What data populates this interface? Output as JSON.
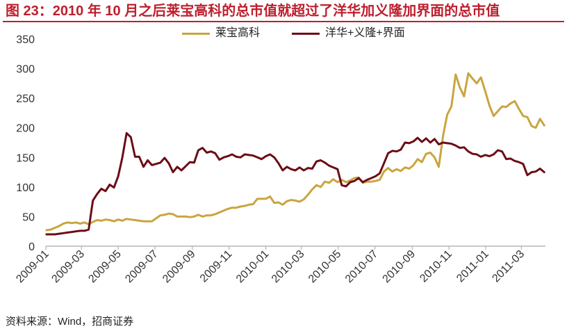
{
  "colors": {
    "title": "#BE1E2D",
    "axis": "#A6A6A6",
    "text": "#333333"
  },
  "chart_data": {
    "type": "line",
    "title": "图 23：2010 年 10 月之后莱宝高科的总市值就超过了洋华加义隆加界面的总市值",
    "legend": "top",
    "grid": false,
    "ylim": [
      0,
      350
    ],
    "yticks": [
      0,
      50,
      100,
      150,
      200,
      250,
      300,
      350
    ],
    "xlim": [
      "2009-01-01",
      "2011-04-10"
    ],
    "xticks": [
      "2009-01",
      "2009-03",
      "2009-05",
      "2009-07",
      "2009-09",
      "2009-11",
      "2010-01",
      "2010-03",
      "2010-05",
      "2010-07",
      "2010-09",
      "2010-11",
      "2011-01",
      "2011-03"
    ],
    "x": [
      "2009-01-02",
      "2009-01-09",
      "2009-01-16",
      "2009-01-23",
      "2009-01-30",
      "2009-02-06",
      "2009-02-13",
      "2009-02-20",
      "2009-02-27",
      "2009-03-06",
      "2009-03-13",
      "2009-03-20",
      "2009-03-27",
      "2009-04-03",
      "2009-04-10",
      "2009-04-17",
      "2009-04-24",
      "2009-05-01",
      "2009-05-08",
      "2009-05-15",
      "2009-05-22",
      "2009-05-29",
      "2009-06-05",
      "2009-06-12",
      "2009-06-19",
      "2009-06-26",
      "2009-07-03",
      "2009-07-10",
      "2009-07-17",
      "2009-07-24",
      "2009-07-31",
      "2009-08-07",
      "2009-08-14",
      "2009-08-21",
      "2009-08-28",
      "2009-09-04",
      "2009-09-11",
      "2009-09-18",
      "2009-09-25",
      "2009-10-02",
      "2009-10-09",
      "2009-10-16",
      "2009-10-23",
      "2009-10-30",
      "2009-11-06",
      "2009-11-13",
      "2009-11-20",
      "2009-11-27",
      "2009-12-04",
      "2009-12-11",
      "2009-12-18",
      "2009-12-25",
      "2010-01-01",
      "2010-01-08",
      "2010-01-15",
      "2010-01-22",
      "2010-01-29",
      "2010-02-05",
      "2010-02-12",
      "2010-02-19",
      "2010-02-26",
      "2010-03-05",
      "2010-03-12",
      "2010-03-19",
      "2010-03-26",
      "2010-04-02",
      "2010-04-09",
      "2010-04-16",
      "2010-04-23",
      "2010-04-30",
      "2010-05-07",
      "2010-05-14",
      "2010-05-21",
      "2010-05-28",
      "2010-06-04",
      "2010-06-11",
      "2010-06-18",
      "2010-06-25",
      "2010-07-02",
      "2010-07-09",
      "2010-07-16",
      "2010-07-23",
      "2010-07-30",
      "2010-08-06",
      "2010-08-13",
      "2010-08-20",
      "2010-08-27",
      "2010-09-03",
      "2010-09-10",
      "2010-09-17",
      "2010-09-24",
      "2010-10-01",
      "2010-10-08",
      "2010-10-15",
      "2010-10-22",
      "2010-10-29",
      "2010-11-05",
      "2010-11-12",
      "2010-11-19",
      "2010-11-26",
      "2010-12-03",
      "2010-12-10",
      "2010-12-17",
      "2010-12-24",
      "2010-12-31",
      "2011-01-07",
      "2011-01-14",
      "2011-01-21",
      "2011-01-28",
      "2011-02-04",
      "2011-02-11",
      "2011-02-18",
      "2011-02-25",
      "2011-03-04",
      "2011-03-11",
      "2011-03-18",
      "2011-03-25",
      "2011-04-01",
      "2011-04-08"
    ],
    "series": [
      {
        "name": "莱宝高科",
        "color": "#C9A53F",
        "values": [
          27,
          28,
          31,
          34,
          38,
          40,
          39,
          40,
          38,
          40,
          37,
          41,
          44,
          43,
          45,
          44,
          42,
          45,
          43,
          46,
          45,
          44,
          43,
          42,
          42,
          42,
          47,
          52,
          53,
          55,
          54,
          50,
          50,
          50,
          49,
          50,
          53,
          50,
          52,
          52,
          54,
          57,
          60,
          63,
          65,
          65,
          67,
          68,
          70,
          71,
          80,
          80,
          80,
          84,
          73,
          74,
          70,
          76,
          78,
          77,
          75,
          79,
          87,
          96,
          103,
          100,
          109,
          107,
          113,
          108,
          112,
          108,
          111,
          115,
          116,
          107,
          109,
          109,
          110,
          112,
          126,
          132,
          126,
          130,
          127,
          133,
          131,
          137,
          147,
          142,
          156,
          158,
          150,
          134,
          186,
          222,
          236,
          290,
          268,
          253,
          292,
          283,
          275,
          285,
          262,
          238,
          220,
          228,
          236,
          235,
          241,
          245,
          232,
          220,
          218,
          203,
          200,
          215,
          204
        ]
      },
      {
        "name": "洋华+义隆+界面",
        "color": "#6B0C16",
        "values": [
          20,
          20,
          20,
          21,
          22,
          23,
          24,
          25,
          26,
          26,
          28,
          77,
          88,
          97,
          93,
          104,
          99,
          118,
          150,
          191,
          184,
          151,
          151,
          134,
          145,
          137,
          139,
          141,
          149,
          140,
          125,
          134,
          128,
          135,
          142,
          141,
          162,
          166,
          158,
          160,
          157,
          146,
          150,
          152,
          155,
          151,
          150,
          155,
          154,
          153,
          150,
          147,
          152,
          155,
          150,
          140,
          128,
          134,
          130,
          128,
          133,
          128,
          132,
          131,
          143,
          145,
          141,
          136,
          133,
          130,
          103,
          101,
          108,
          110,
          115,
          108,
          112,
          115,
          118,
          123,
          140,
          157,
          161,
          160,
          163,
          175,
          174,
          177,
          183,
          176,
          182,
          175,
          181,
          172,
          175,
          174,
          173,
          170,
          166,
          167,
          160,
          156,
          155,
          151,
          154,
          152,
          155,
          162,
          160,
          147,
          148,
          144,
          142,
          139,
          120,
          125,
          126,
          131,
          125
        ]
      }
    ]
  },
  "source": "资料来源：Wind，招商证券"
}
